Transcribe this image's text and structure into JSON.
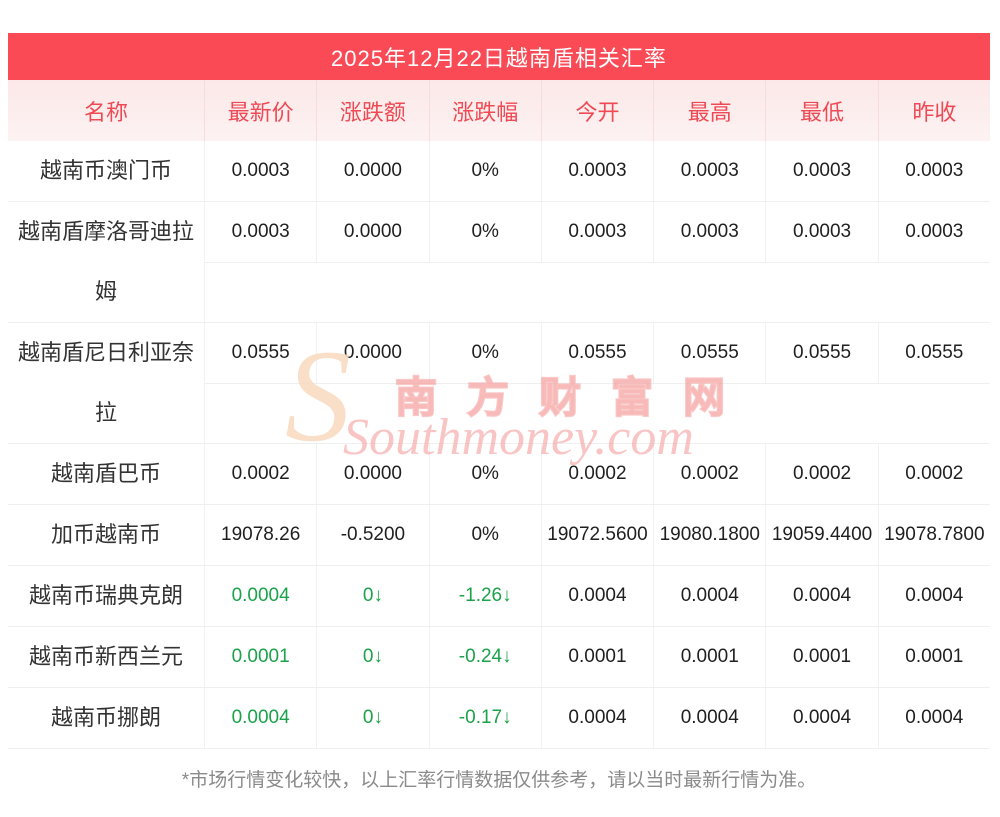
{
  "title": "2025年12月22日越南盾相关汇率",
  "table": {
    "headers": [
      "名称",
      "最新价",
      "涨跌额",
      "涨跌幅",
      "今开",
      "最高",
      "最低",
      "昨收"
    ],
    "rows": [
      {
        "name": "越南币澳门币",
        "values": [
          "0.0003",
          "0.0000",
          "0%",
          "0.0003",
          "0.0003",
          "0.0003",
          "0.0003"
        ],
        "green_cols": []
      },
      {
        "name": "越南盾摩洛哥迪拉姆",
        "values": [
          "0.0003",
          "0.0000",
          "0%",
          "0.0003",
          "0.0003",
          "0.0003",
          "0.0003"
        ],
        "green_cols": []
      },
      {
        "name": "越南盾尼日利亚奈拉",
        "values": [
          "0.0555",
          "0.0000",
          "0%",
          "0.0555",
          "0.0555",
          "0.0555",
          "0.0555"
        ],
        "green_cols": []
      },
      {
        "name": "越南盾巴币",
        "values": [
          "0.0002",
          "0.0000",
          "0%",
          "0.0002",
          "0.0002",
          "0.0002",
          "0.0002"
        ],
        "green_cols": []
      },
      {
        "name": "加币越南币",
        "values": [
          "19078.26",
          "-0.5200",
          "0%",
          "19072.5600",
          "19080.1800",
          "19059.4400",
          "19078.7800"
        ],
        "green_cols": []
      },
      {
        "name": "越南币瑞典克朗",
        "values": [
          "0.0004",
          "0↓",
          "-1.26↓",
          "0.0004",
          "0.0004",
          "0.0004",
          "0.0004"
        ],
        "green_cols": [
          0,
          1,
          2
        ]
      },
      {
        "name": "越南币新西兰元",
        "values": [
          "0.0001",
          "0↓",
          "-0.24↓",
          "0.0001",
          "0.0001",
          "0.0001",
          "0.0001"
        ],
        "green_cols": [
          0,
          1,
          2
        ]
      },
      {
        "name": "越南币挪朗",
        "values": [
          "0.0004",
          "0↓",
          "-0.17↓",
          "0.0004",
          "0.0004",
          "0.0004",
          "0.0004"
        ],
        "green_cols": [
          0,
          1,
          2
        ]
      }
    ]
  },
  "watermark": {
    "initial": "S",
    "cn": "南方财富网",
    "en": "Southmoney.com"
  },
  "footer": "*市场行情变化较快，以上汇率行情数据仅供参考，请以当时最新行情为准。",
  "colors": {
    "accent_red": "#fa4a55",
    "header_text_red": "#ee4a55",
    "down_green": "#1ba24a",
    "header_bg_pink": "#fce8e8"
  }
}
